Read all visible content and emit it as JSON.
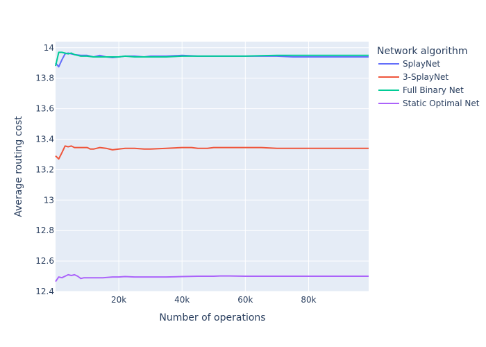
{
  "chart_data": {
    "type": "line",
    "title": "",
    "xlabel": "Number of operations",
    "ylabel": "Average routing cost",
    "xlim": [
      0,
      99000
    ],
    "ylim": [
      12.4,
      14.04
    ],
    "x_ticks": [
      20000,
      40000,
      60000,
      80000
    ],
    "x_tick_labels": [
      "20k",
      "40k",
      "60k",
      "80k"
    ],
    "y_ticks": [
      12.4,
      12.6,
      12.8,
      13,
      13.2,
      13.4,
      13.6,
      13.8,
      14
    ],
    "y_tick_labels": [
      "12.4",
      "12.6",
      "12.8",
      "13",
      "13.2",
      "13.4",
      "13.6",
      "13.8",
      "14"
    ],
    "grid": true,
    "legend": {
      "title": "Network algorithm",
      "placement": "right"
    },
    "colors": {
      "plot_bg": "#e5ecf6",
      "grid": "#ffffff",
      "text": "#2a3f5f"
    },
    "series": [
      {
        "name": "SplayNet",
        "color": "#636efa",
        "points": [
          [
            0,
            13.9
          ],
          [
            1000,
            13.875
          ],
          [
            2000,
            13.92
          ],
          [
            3000,
            13.96
          ],
          [
            4000,
            13.965
          ],
          [
            5000,
            13.96
          ],
          [
            6000,
            13.955
          ],
          [
            8000,
            13.95
          ],
          [
            10000,
            13.95
          ],
          [
            12000,
            13.94
          ],
          [
            14000,
            13.95
          ],
          [
            16000,
            13.94
          ],
          [
            18000,
            13.935
          ],
          [
            20000,
            13.94
          ],
          [
            22000,
            13.945
          ],
          [
            25000,
            13.945
          ],
          [
            28000,
            13.94
          ],
          [
            30000,
            13.945
          ],
          [
            35000,
            13.945
          ],
          [
            40000,
            13.95
          ],
          [
            45000,
            13.945
          ],
          [
            50000,
            13.945
          ],
          [
            55000,
            13.945
          ],
          [
            60000,
            13.945
          ],
          [
            65000,
            13.945
          ],
          [
            70000,
            13.945
          ],
          [
            75000,
            13.94
          ],
          [
            80000,
            13.94
          ],
          [
            85000,
            13.94
          ],
          [
            90000,
            13.94
          ],
          [
            95000,
            13.94
          ],
          [
            99000,
            13.94
          ]
        ]
      },
      {
        "name": "3-SplayNet",
        "color": "#ef553b",
        "points": [
          [
            0,
            13.29
          ],
          [
            1000,
            13.27
          ],
          [
            2000,
            13.31
          ],
          [
            3000,
            13.355
          ],
          [
            4000,
            13.35
          ],
          [
            5000,
            13.355
          ],
          [
            6000,
            13.345
          ],
          [
            8000,
            13.345
          ],
          [
            10000,
            13.345
          ],
          [
            11000,
            13.335
          ],
          [
            12000,
            13.335
          ],
          [
            14000,
            13.345
          ],
          [
            16000,
            13.34
          ],
          [
            18000,
            13.33
          ],
          [
            20000,
            13.335
          ],
          [
            22000,
            13.34
          ],
          [
            25000,
            13.34
          ],
          [
            28000,
            13.335
          ],
          [
            30000,
            13.335
          ],
          [
            35000,
            13.34
          ],
          [
            40000,
            13.345
          ],
          [
            43000,
            13.345
          ],
          [
            45000,
            13.34
          ],
          [
            48000,
            13.34
          ],
          [
            50000,
            13.345
          ],
          [
            55000,
            13.345
          ],
          [
            60000,
            13.345
          ],
          [
            65000,
            13.345
          ],
          [
            70000,
            13.34
          ],
          [
            75000,
            13.34
          ],
          [
            80000,
            13.34
          ],
          [
            85000,
            13.34
          ],
          [
            90000,
            13.34
          ],
          [
            95000,
            13.34
          ],
          [
            99000,
            13.34
          ]
        ]
      },
      {
        "name": "Full Binary Net",
        "color": "#00cc96",
        "points": [
          [
            0,
            13.88
          ],
          [
            1000,
            13.97
          ],
          [
            2000,
            13.97
          ],
          [
            3000,
            13.965
          ],
          [
            4000,
            13.96
          ],
          [
            5000,
            13.965
          ],
          [
            6000,
            13.955
          ],
          [
            8000,
            13.945
          ],
          [
            10000,
            13.945
          ],
          [
            12000,
            13.94
          ],
          [
            14000,
            13.94
          ],
          [
            16000,
            13.94
          ],
          [
            18000,
            13.94
          ],
          [
            20000,
            13.94
          ],
          [
            22000,
            13.945
          ],
          [
            25000,
            13.94
          ],
          [
            30000,
            13.94
          ],
          [
            35000,
            13.94
          ],
          [
            40000,
            13.945
          ],
          [
            45000,
            13.945
          ],
          [
            50000,
            13.945
          ],
          [
            55000,
            13.945
          ],
          [
            60000,
            13.945
          ],
          [
            65000,
            13.948
          ],
          [
            70000,
            13.95
          ],
          [
            75000,
            13.95
          ],
          [
            80000,
            13.95
          ],
          [
            85000,
            13.95
          ],
          [
            90000,
            13.95
          ],
          [
            95000,
            13.95
          ],
          [
            99000,
            13.95
          ]
        ]
      },
      {
        "name": "Static Optimal Net",
        "color": "#ab63fa",
        "points": [
          [
            0,
            12.465
          ],
          [
            1000,
            12.495
          ],
          [
            2000,
            12.49
          ],
          [
            3000,
            12.5
          ],
          [
            4000,
            12.51
          ],
          [
            5000,
            12.505
          ],
          [
            6000,
            12.51
          ],
          [
            7000,
            12.5
          ],
          [
            8000,
            12.485
          ],
          [
            9000,
            12.49
          ],
          [
            12000,
            12.49
          ],
          [
            15000,
            12.49
          ],
          [
            18000,
            12.495
          ],
          [
            20000,
            12.495
          ],
          [
            22000,
            12.498
          ],
          [
            25000,
            12.495
          ],
          [
            30000,
            12.495
          ],
          [
            35000,
            12.495
          ],
          [
            40000,
            12.498
          ],
          [
            45000,
            12.5
          ],
          [
            50000,
            12.5
          ],
          [
            52000,
            12.502
          ],
          [
            55000,
            12.502
          ],
          [
            60000,
            12.5
          ],
          [
            65000,
            12.5
          ],
          [
            70000,
            12.5
          ],
          [
            75000,
            12.5
          ],
          [
            80000,
            12.5
          ],
          [
            85000,
            12.5
          ],
          [
            90000,
            12.5
          ],
          [
            95000,
            12.5
          ],
          [
            99000,
            12.5
          ]
        ]
      }
    ]
  }
}
